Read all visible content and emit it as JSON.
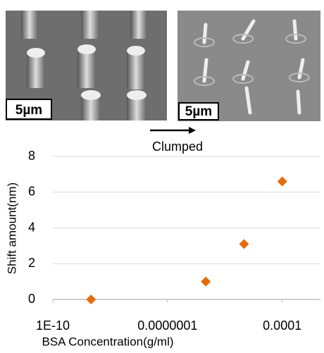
{
  "images": [
    {
      "scale_label": "5µm"
    },
    {
      "scale_label": "5µm"
    }
  ],
  "arrow_label": "Clumped",
  "chart_data": {
    "type": "scatter",
    "x_label": "BSA Concentration(g/ml)",
    "y_label": "Shift amount(nm)",
    "x": [
      1e-09,
      1e-06,
      1e-05,
      0.0001
    ],
    "values": [
      0,
      1.0,
      3.1,
      6.6
    ],
    "color": "#e46c0a",
    "xscale": "log",
    "xlim": [
      1e-10,
      0.001
    ],
    "xticks": [
      {
        "value": 1e-10,
        "label": "1E-10"
      },
      {
        "value": 1e-07,
        "label": "0.0000001"
      },
      0.0001
    ],
    "ylim": [
      0,
      8
    ],
    "yticks": [
      0,
      2,
      4,
      6,
      8
    ],
    "grid": true
  }
}
